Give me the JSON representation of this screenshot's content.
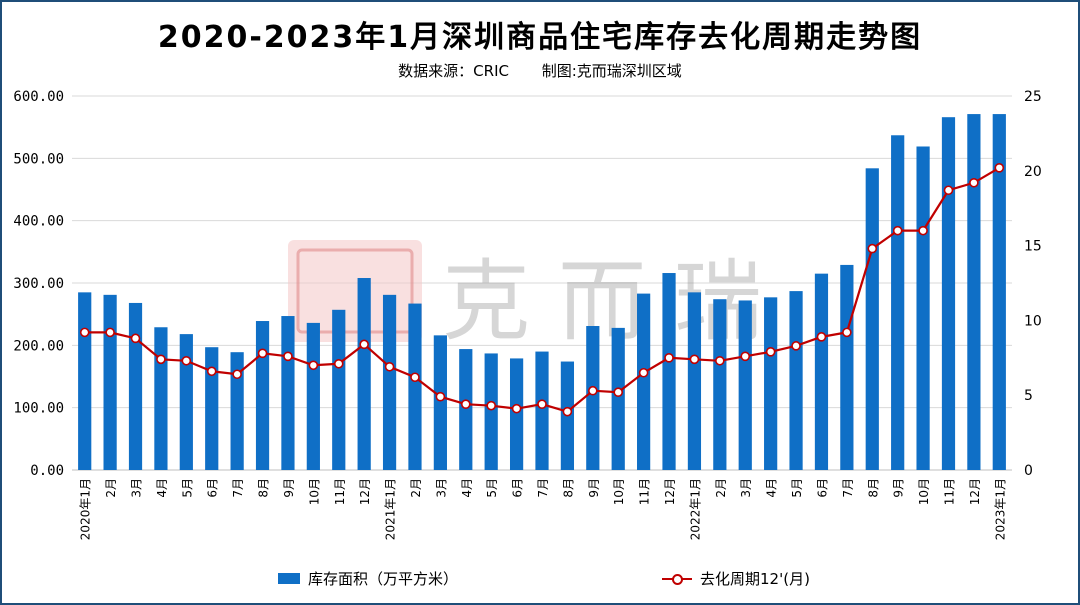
{
  "header": {
    "title": "2020-2023年1月深圳商品住宅库存去化周期走势图",
    "source": "数据来源：CRIC",
    "producer": "制图:克而瑞深圳区域"
  },
  "watermark": {
    "text": "克 而 瑞"
  },
  "colors": {
    "bar": "#0f6fc6",
    "line": "#c00000",
    "grid": "#d9d9d9",
    "frame": "#1f4e79"
  },
  "chart_data": {
    "type": "bar",
    "categories": [
      "2020年1月",
      "2月",
      "3月",
      "4月",
      "5月",
      "6月",
      "7月",
      "8月",
      "9月",
      "10月",
      "11月",
      "12月",
      "2021年1月",
      "2月",
      "3月",
      "4月",
      "5月",
      "6月",
      "7月",
      "8月",
      "9月",
      "10月",
      "11月",
      "12月",
      "2022年1月",
      "2月",
      "3月",
      "4月",
      "5月",
      "6月",
      "7月",
      "8月",
      "9月",
      "10月",
      "11月",
      "12月",
      "2023年1月"
    ],
    "series": [
      {
        "name": "库存面积（万平方米）",
        "type": "bar",
        "axis": "left",
        "values": [
          285,
          281,
          268,
          229,
          218,
          197,
          189,
          239,
          247,
          236,
          257,
          308,
          281,
          267,
          216,
          194,
          187,
          179,
          190,
          174,
          231,
          228,
          283,
          316,
          285,
          274,
          272,
          277,
          287,
          315,
          329,
          484,
          537,
          519,
          566,
          571,
          571
        ]
      },
      {
        "name": "去化周期12'(月)",
        "type": "line",
        "axis": "right",
        "values": [
          9.2,
          9.2,
          8.8,
          7.4,
          7.3,
          6.6,
          6.4,
          7.8,
          7.6,
          7.0,
          7.1,
          8.4,
          6.9,
          6.2,
          4.9,
          4.4,
          4.3,
          4.1,
          4.4,
          3.9,
          5.3,
          5.2,
          6.5,
          7.5,
          7.4,
          7.3,
          7.6,
          7.9,
          8.3,
          8.9,
          9.2,
          14.8,
          16.0,
          16.0,
          18.7,
          19.2,
          20.2
        ]
      }
    ],
    "y_left": {
      "min": 0,
      "max": 600,
      "step": 100,
      "tick_labels": [
        "0.00",
        "100.00",
        "200.00",
        "300.00",
        "400.00",
        "500.00",
        "600.00"
      ]
    },
    "y_right": {
      "min": 0,
      "max": 25,
      "step": 5,
      "tick_labels": [
        "0",
        "5",
        "10",
        "15",
        "20",
        "25"
      ]
    },
    "grid": true,
    "legend": "bottom"
  }
}
